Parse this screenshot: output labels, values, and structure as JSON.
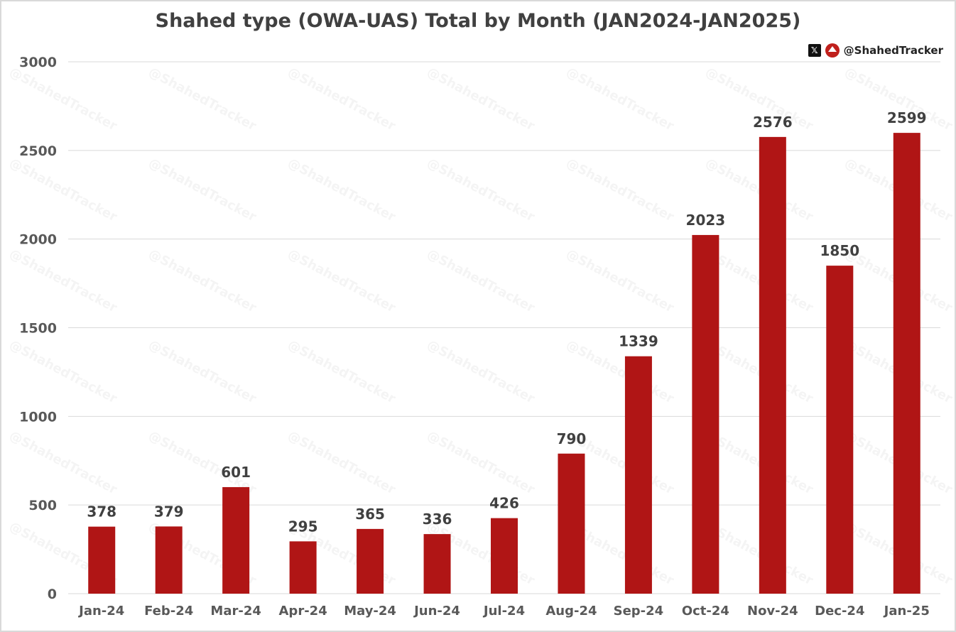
{
  "chart_data": {
    "type": "bar",
    "title": "Shahed type (OWA-UAS) Total by Month (JAN2024-JAN2025)",
    "categories": [
      "Jan-24",
      "Feb-24",
      "Mar-24",
      "Apr-24",
      "May-24",
      "Jun-24",
      "Jul-24",
      "Aug-24",
      "Sep-24",
      "Oct-24",
      "Nov-24",
      "Dec-24",
      "Jan-25"
    ],
    "values": [
      378,
      379,
      601,
      295,
      365,
      336,
      426,
      790,
      1339,
      2023,
      2576,
      1850,
      2599
    ],
    "ylim": [
      0,
      3000
    ],
    "yticks": [
      0,
      500,
      1000,
      1500,
      2000,
      2500,
      3000
    ],
    "grid": true,
    "legend": "none",
    "bar_color": "#b01515",
    "xlabel": "",
    "ylabel": ""
  },
  "brand": {
    "handle": "@ShahedTracker",
    "x_icon": "x-logo-icon",
    "logo_icon": "shahed-tracker-logo-icon"
  },
  "watermark": "@ShahedTracker"
}
